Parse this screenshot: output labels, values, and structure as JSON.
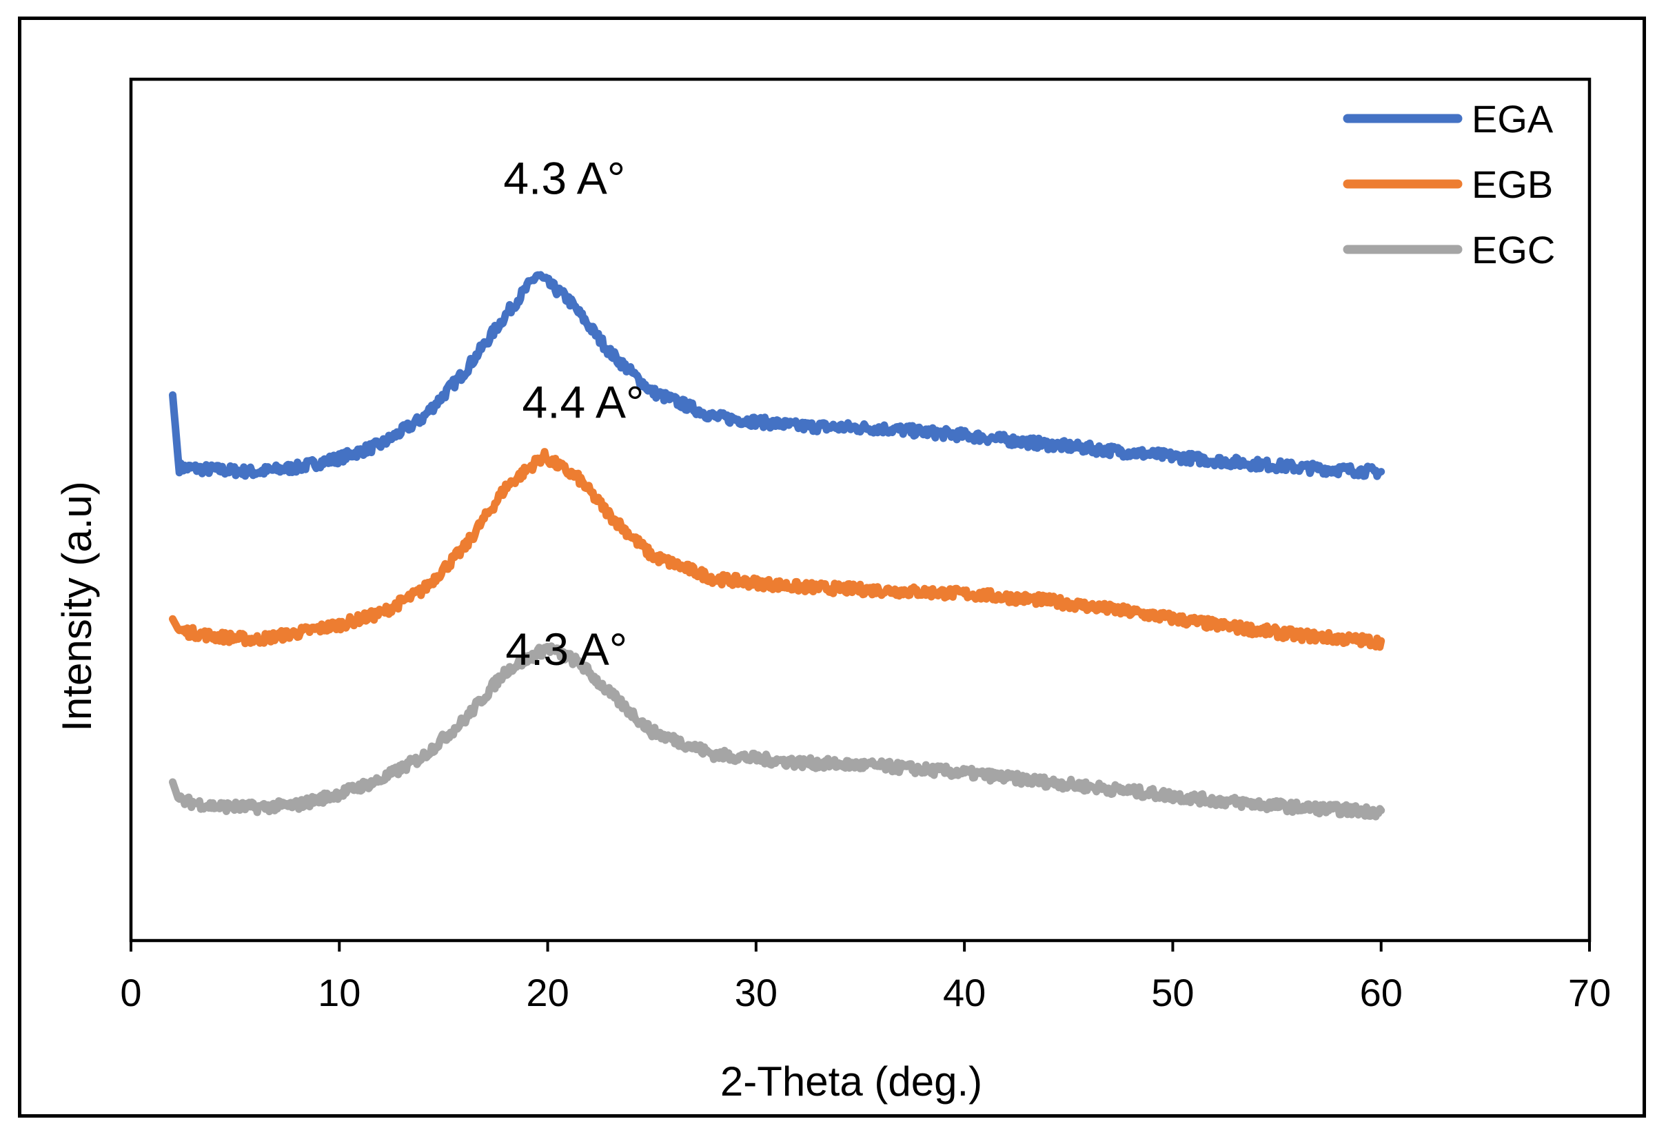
{
  "chart_data": {
    "type": "line",
    "xlabel": "2-Theta (deg.)",
    "ylabel": "Intensity (a.u)",
    "xlim": [
      0,
      70
    ],
    "xticks": [
      "0",
      "10",
      "20",
      "30",
      "40",
      "50",
      "60",
      "70"
    ],
    "grid": false,
    "legend": {
      "placement": "top-right"
    },
    "series": [
      {
        "name": "EGA",
        "color": "#4472C4",
        "x": [
          2,
          2.3,
          4,
          6,
          8,
          10,
          12,
          14,
          16,
          18,
          19.5,
          21,
          23,
          25,
          28,
          32,
          36,
          40,
          44,
          48,
          52,
          56,
          60
        ],
        "y": [
          3.75,
          3.12,
          3.1,
          3.08,
          3.12,
          3.2,
          3.32,
          3.55,
          3.95,
          4.45,
          4.8,
          4.58,
          4.12,
          3.78,
          3.56,
          3.48,
          3.46,
          3.4,
          3.32,
          3.25,
          3.18,
          3.12,
          3.08
        ]
      },
      {
        "name": "EGB",
        "color": "#ED7D31",
        "x": [
          2,
          2.3,
          4,
          6,
          8,
          10,
          12,
          14,
          16,
          18,
          19.8,
          21.5,
          23,
          25,
          28,
          32,
          36,
          40,
          44,
          48,
          52,
          56,
          60
        ],
        "y": [
          1.8,
          1.7,
          1.65,
          1.62,
          1.68,
          1.75,
          1.85,
          2.05,
          2.42,
          2.95,
          3.22,
          3.02,
          2.7,
          2.35,
          2.15,
          2.08,
          2.05,
          2.02,
          1.96,
          1.86,
          1.75,
          1.66,
          1.6
        ]
      },
      {
        "name": "EGC",
        "color": "#A5A5A5",
        "x": [
          2,
          2.3,
          4,
          6,
          8,
          10,
          12,
          14,
          16,
          18,
          20,
          21.5,
          23,
          25,
          28,
          32,
          36,
          40,
          44,
          48,
          52,
          56,
          60
        ],
        "y": [
          0.38,
          0.22,
          0.17,
          0.16,
          0.18,
          0.28,
          0.4,
          0.6,
          0.92,
          1.35,
          1.55,
          1.42,
          1.15,
          0.82,
          0.62,
          0.55,
          0.52,
          0.46,
          0.38,
          0.3,
          0.22,
          0.16,
          0.12
        ]
      }
    ],
    "annotations": [
      {
        "text": "4.3 A°",
        "series": "EGA",
        "x": 20.8,
        "y": 5.5
      },
      {
        "text": "4.4 A°",
        "series": "EGB",
        "x": 21.7,
        "y": 3.55
      },
      {
        "text": "4.3 A°",
        "series": "EGC",
        "x": 20.9,
        "y": 1.4
      }
    ]
  }
}
